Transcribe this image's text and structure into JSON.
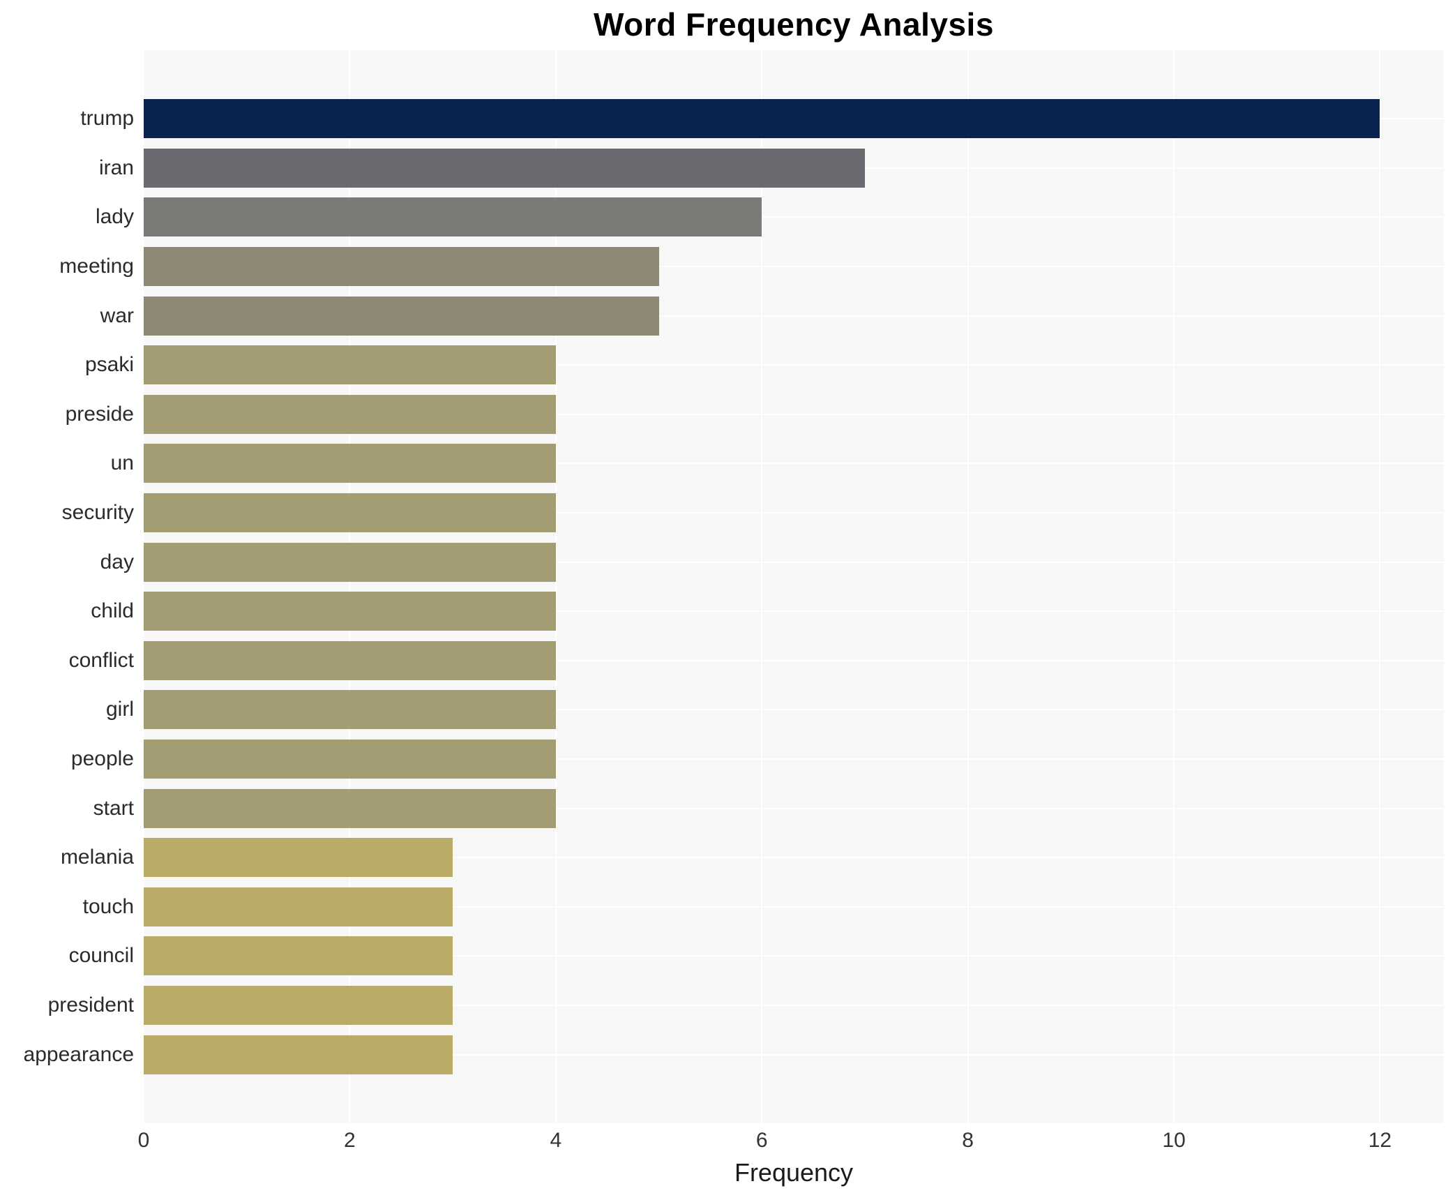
{
  "chart_data": {
    "type": "bar",
    "orientation": "horizontal",
    "title": "Word Frequency Analysis",
    "xlabel": "Frequency",
    "ylabel": "",
    "legend": null,
    "grid": true,
    "xlim": [
      0,
      12.62
    ],
    "xticks": [
      0,
      2,
      4,
      6,
      8,
      10,
      12
    ],
    "categories": [
      "trump",
      "iran",
      "lady",
      "meeting",
      "war",
      "psaki",
      "preside",
      "un",
      "security",
      "day",
      "child",
      "conflict",
      "girl",
      "people",
      "start",
      "melania",
      "touch",
      "council",
      "president",
      "appearance"
    ],
    "values": [
      12,
      7,
      6,
      5,
      5,
      4,
      4,
      4,
      4,
      4,
      4,
      4,
      4,
      4,
      4,
      3,
      3,
      3,
      3,
      3
    ],
    "bar_colors": [
      "#08234d",
      "#696b71",
      "#7a7b76",
      "#8e8877",
      "#8e8877",
      "#a49c72",
      "#a49c72",
      "#a49c72",
      "#a49c72",
      "#a49c72",
      "#a49c72",
      "#a49c72",
      "#a49c72",
      "#a49c72",
      "#a49c72",
      "#b9ab67",
      "#b9ab67",
      "#b9ab67",
      "#b9ab67",
      "#b9ab67"
    ]
  },
  "colors": {
    "figure_background": "#ffffff",
    "plot_background": "#f7f7f8",
    "gridline": "#ffffff",
    "tick_text": "#333333",
    "label_text": "#2b2b2b",
    "title_text": "#000000"
  }
}
